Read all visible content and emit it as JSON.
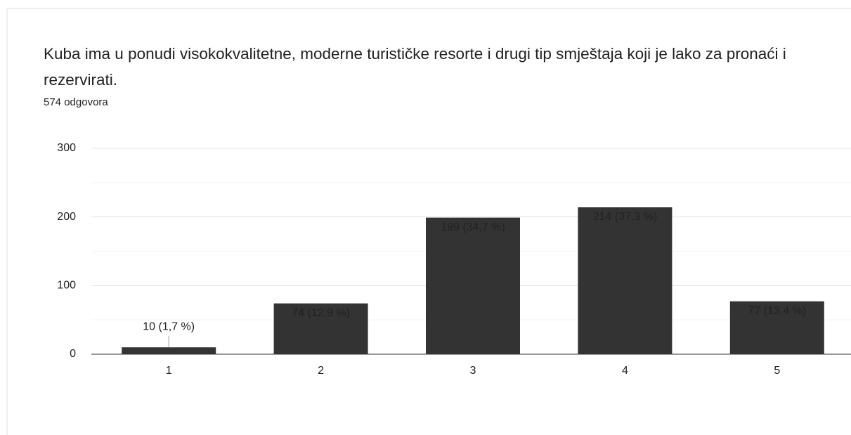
{
  "chart_data": {
    "type": "bar",
    "title": "Kuba ima u ponudi visokokvalitetne, moderne turističke resorte i drugi tip smještaja koji je lako za pronaći i rezervirati.",
    "subtitle": "574 odgovora",
    "categories": [
      "1",
      "2",
      "3",
      "4",
      "5"
    ],
    "values": [
      10,
      74,
      199,
      214,
      77
    ],
    "value_labels": [
      "10 (1,7 %)",
      "74 (12,9 %)",
      "199 (34,7 %)",
      "214 (37,3 %)",
      "77 (13,4 %)"
    ],
    "color": "#333333",
    "ylim": [
      0,
      300
    ],
    "yticks": [
      0,
      100,
      200,
      300
    ],
    "grid": true
  }
}
